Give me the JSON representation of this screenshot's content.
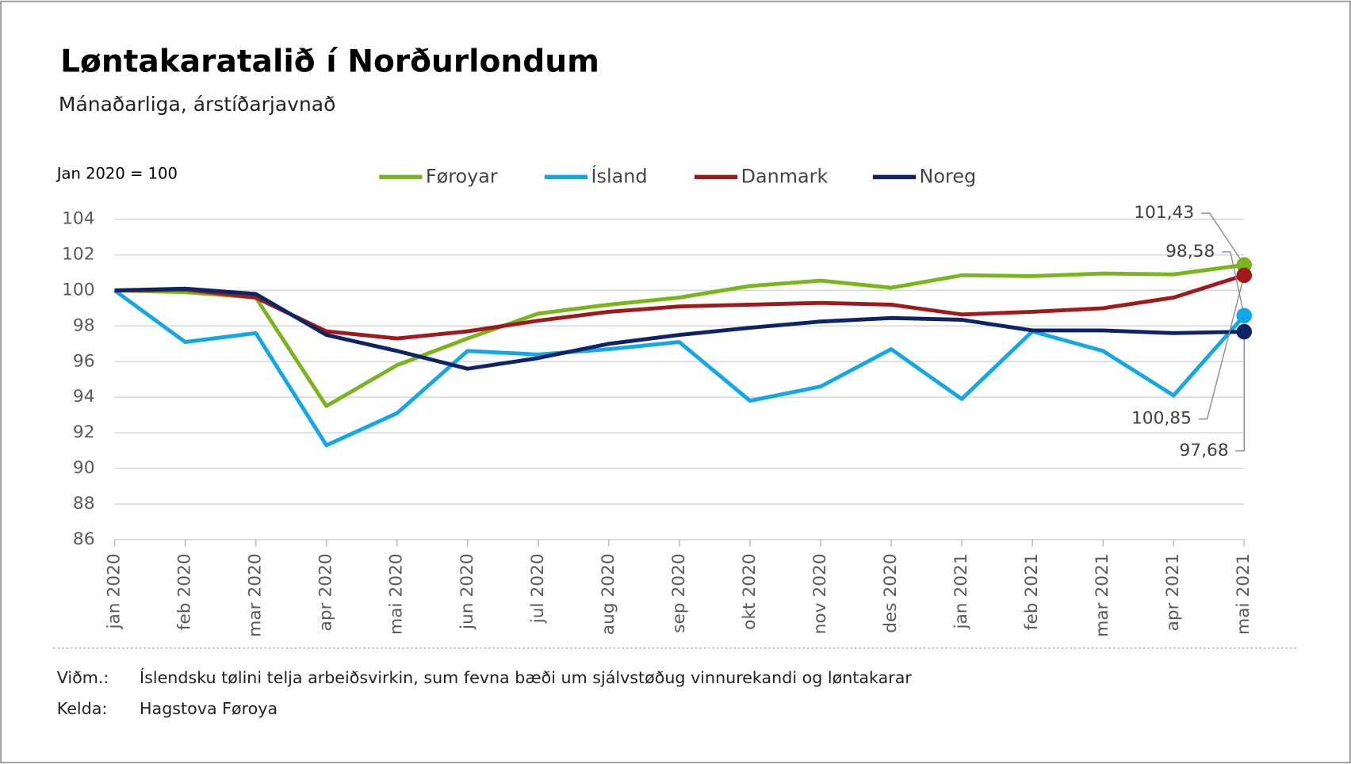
{
  "chart_data": {
    "type": "line",
    "title": "Løntakaratalið í Norðurlondum",
    "subtitle": "Mánaðarliga, árstíðarjavnað",
    "ylabel": "Jan 2020 = 100",
    "categories": [
      "jan 2020",
      "feb 2020",
      "mar 2020",
      "apr 2020",
      "mai 2020",
      "jun 2020",
      "jul 2020",
      "aug 2020",
      "sep 2020",
      "okt 2020",
      "nov 2020",
      "des 2020",
      "jan 2021",
      "feb 2021",
      "mar 2021",
      "apr 2021",
      "mai 2021"
    ],
    "series": [
      {
        "name": "Føroyar",
        "color": "#7ab51d",
        "values": [
          100,
          99.9,
          99.6,
          93.5,
          95.8,
          97.3,
          98.7,
          99.2,
          99.6,
          100.25,
          100.55,
          100.15,
          100.85,
          100.8,
          100.95,
          100.9,
          101.43
        ],
        "end_label": "101,43"
      },
      {
        "name": "Ísland",
        "color": "#12a7e6",
        "values": [
          100,
          97.1,
          97.6,
          91.3,
          93.1,
          96.6,
          96.4,
          96.7,
          97.1,
          93.8,
          94.6,
          96.7,
          93.9,
          97.7,
          96.6,
          94.1,
          98.58
        ],
        "end_label": "98,58"
      },
      {
        "name": "Danmark",
        "color": "#a0191b",
        "values": [
          100,
          100.05,
          99.6,
          97.7,
          97.3,
          97.7,
          98.3,
          98.8,
          99.1,
          99.2,
          99.3,
          99.2,
          98.65,
          98.8,
          99.0,
          99.6,
          100.85
        ],
        "end_label": "100,85"
      },
      {
        "name": "Noreg",
        "color": "#0f2466",
        "values": [
          100,
          100.1,
          99.8,
          97.5,
          96.6,
          95.6,
          96.2,
          97.0,
          97.5,
          97.9,
          98.25,
          98.45,
          98.35,
          97.75,
          97.75,
          97.6,
          97.68
        ],
        "end_label": "97,68"
      }
    ],
    "ylim": [
      86,
      104
    ],
    "yticks": [
      86,
      88,
      90,
      92,
      94,
      96,
      98,
      100,
      102,
      104
    ],
    "grid": true,
    "notes": [
      {
        "label": "Viðm.:",
        "text": "Íslendsku tølini telja arbeiðsvirkin, sum fevna bæði um sjálvstøðug vinnurekandi og løntakarar"
      },
      {
        "label": "Kelda:",
        "text": "Hagstova Føroya"
      }
    ]
  }
}
